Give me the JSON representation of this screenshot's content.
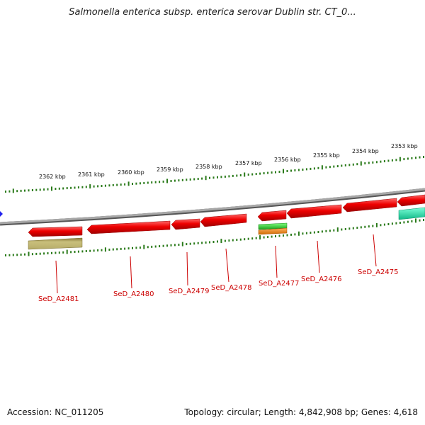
{
  "title": "Salmonella enterica subsp. enterica serovar Dublin str. CT_0...",
  "footer": {
    "accession": "Accession: NC_011205",
    "topology": "Topology: circular; Length: 4,842,908 bp; Genes: 4,618"
  },
  "scale_labels": [
    "2362 kbp",
    "2361 kbp",
    "2360 kbp",
    "2359 kbp",
    "2358 kbp",
    "2357 kbp",
    "2356 kbp",
    "2355 kbp",
    "2354 kbp",
    "2353 kbp"
  ],
  "gene_labels": [
    "SeD_A2481",
    "SeD_A2480",
    "SeD_A2479",
    "SeD_A2478",
    "SeD_A2477",
    "SeD_A2476",
    "SeD_A2475"
  ],
  "colors": {
    "gene": "#e00000",
    "label": "#cc0000",
    "tick": "#2a7a1a",
    "backbone": "#888888",
    "olive": "#b8ae6a",
    "green": "#33cc33",
    "orange": "#f08a1e",
    "teal": "#22ddaa",
    "marker": "#2222ee"
  }
}
